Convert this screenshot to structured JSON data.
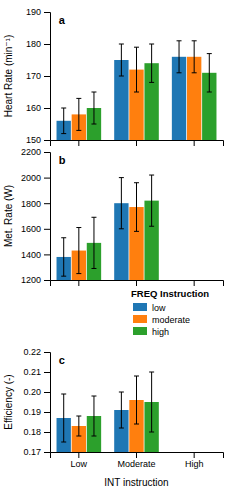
{
  "chart_data": [
    {
      "type": "bar",
      "ylabel": "Heart Rate (min⁻¹)",
      "categories": [
        "Low",
        "Moderate",
        "High"
      ],
      "series": [
        {
          "name": "low",
          "values": [
            156,
            175,
            176
          ],
          "errors": [
            4,
            5,
            5
          ]
        },
        {
          "name": "moderate",
          "values": [
            158,
            172,
            176
          ],
          "errors": [
            5,
            7,
            5
          ]
        },
        {
          "name": "high",
          "values": [
            160,
            174,
            171
          ],
          "errors": [
            5,
            6,
            6
          ]
        }
      ],
      "ylim": [
        150,
        190
      ],
      "yticks": [
        150,
        160,
        170,
        180,
        190
      ],
      "annotations": [
        "a"
      ],
      "tick_labels": "y",
      "grid": false
    },
    {
      "type": "bar",
      "ylabel": "Met. Rate (W)",
      "categories": [
        "Low",
        "Moderate",
        "High"
      ],
      "series": [
        {
          "name": "low",
          "values": [
            1380,
            1800,
            null
          ],
          "errors": [
            150,
            200,
            null
          ]
        },
        {
          "name": "moderate",
          "values": [
            1430,
            1770,
            null
          ],
          "errors": [
            180,
            190,
            null
          ]
        },
        {
          "name": "high",
          "values": [
            1490,
            1820,
            null
          ],
          "errors": [
            200,
            200,
            null
          ]
        }
      ],
      "ylim": [
        1200,
        2200
      ],
      "yticks": [
        1200,
        1400,
        1600,
        1800,
        2000,
        2200
      ],
      "annotations": [
        "b"
      ],
      "tick_labels": "y",
      "grid": false,
      "legend": "right",
      "legend_title": "FREQ Instruction"
    },
    {
      "type": "bar",
      "ylabel": "Efficiency (-)",
      "xlabel": "INT instruction",
      "categories": [
        "Low",
        "Moderate",
        "High"
      ],
      "series": [
        {
          "name": "low",
          "values": [
            0.187,
            0.191,
            null
          ],
          "errors": [
            0.012,
            0.009,
            null
          ]
        },
        {
          "name": "moderate",
          "values": [
            0.183,
            0.196,
            null
          ],
          "errors": [
            0.005,
            0.012,
            null
          ]
        },
        {
          "name": "high",
          "values": [
            0.188,
            0.195,
            null
          ],
          "errors": [
            0.01,
            0.015,
            null
          ]
        }
      ],
      "ylim": [
        0.17,
        0.22
      ],
      "yticks": [
        0.17,
        0.18,
        0.19,
        {
          "value": 0.2,
          "label": "0.20"
        },
        0.21,
        0.22
      ],
      "annotations": [
        "c"
      ],
      "grid": false
    }
  ]
}
